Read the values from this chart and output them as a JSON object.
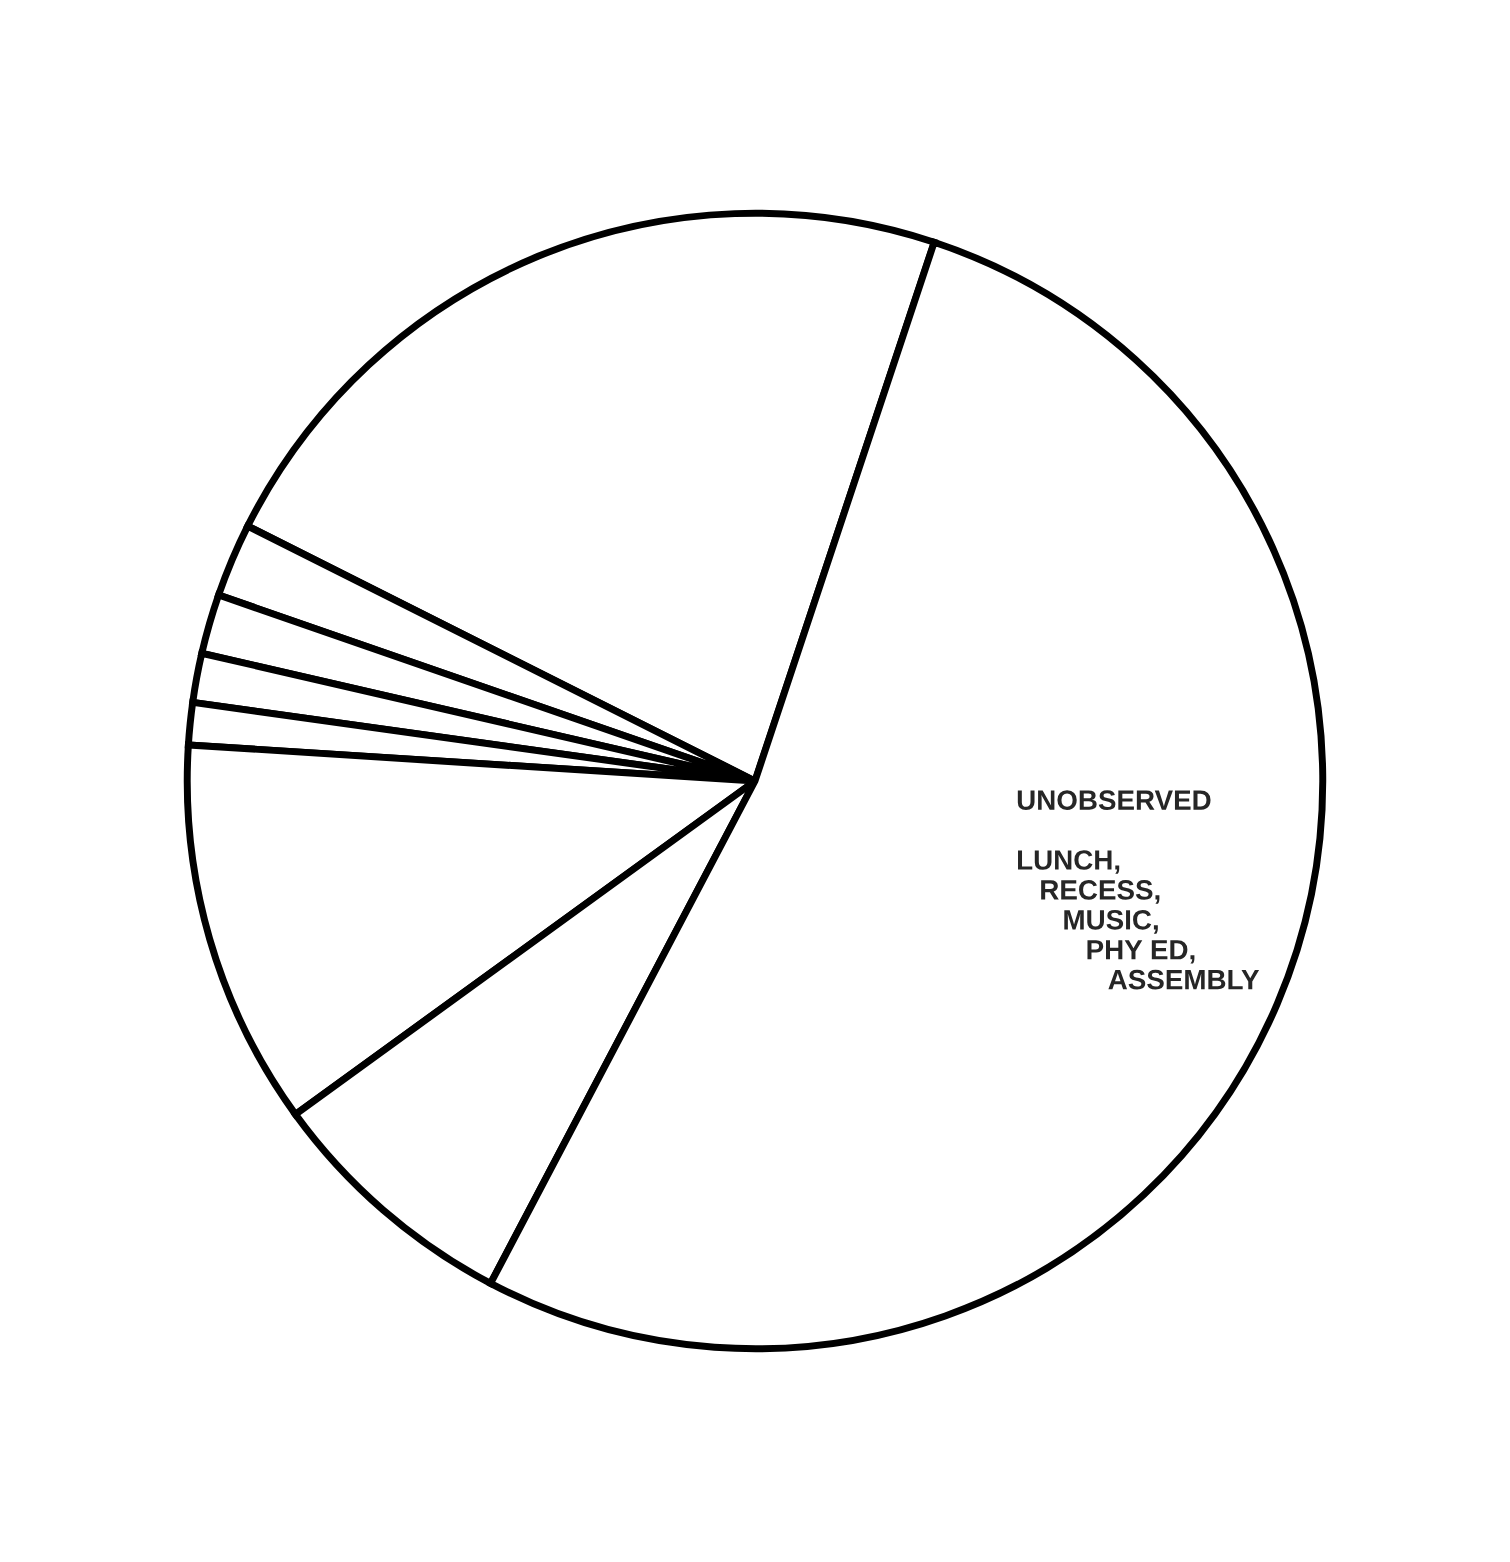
{
  "chart_data": {
    "type": "pie",
    "categories": [
      null,
      null,
      null,
      null,
      null,
      null,
      null,
      "UNOBSERVED\n\nLUNCH,\n   RECESS,\n      MUSIC,\n         PHY ED,\n            ASSEMBLY"
    ],
    "values": [
      22.7,
      2.1,
      1.7,
      1.4,
      1.2,
      11.0,
      7.3,
      52.6
    ],
    "colors": [
      "#ffffff",
      "#ffffff",
      "#ffffff",
      "#ffffff",
      "#ffffff",
      "#ffffff",
      "#ffffff",
      "#ffffff"
    ],
    "legend": false
  }
}
